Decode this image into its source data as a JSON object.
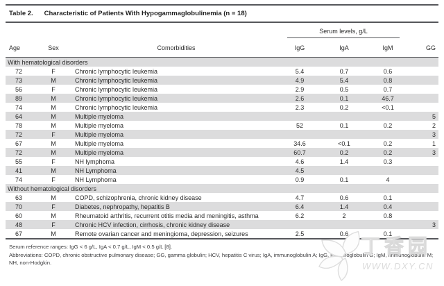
{
  "table": {
    "title_label": "Table 2.",
    "title": "Characteristic of Patients With Hypogammaglobulinemia (n = 18)",
    "serum_group_header": "Serum levels, g/L",
    "columns": [
      "Age",
      "Sex",
      "Comorbidities",
      "IgG",
      "IgA",
      "IgM",
      "GG"
    ],
    "sections": [
      {
        "header": "With hematological disorders",
        "rows": [
          [
            "72",
            "F",
            "Chronic lymphocytic leukemia",
            "5.4",
            "0.7",
            "0.6",
            ""
          ],
          [
            "73",
            "M",
            "Chronic lymphocytic leukemia",
            "4.9",
            "5.4",
            "0.8",
            ""
          ],
          [
            "56",
            "F",
            "Chronic lymphocytic leukemia",
            "2.9",
            "0.5",
            "0.7",
            ""
          ],
          [
            "89",
            "M",
            "Chronic lymphocytic leukemia",
            "2.6",
            "0.1",
            "46.7",
            ""
          ],
          [
            "74",
            "M",
            "Chronic lymphocytic leukemia",
            "2.3",
            "0.2",
            "<0.1",
            ""
          ],
          [
            "64",
            "M",
            "Multiple myeloma",
            "",
            "",
            "",
            "5"
          ],
          [
            "78",
            "M",
            "Multiple myeloma",
            "52",
            "0.1",
            "0.2",
            "2"
          ],
          [
            "72",
            "F",
            "Multiple myeloma",
            "",
            "",
            "",
            "3"
          ],
          [
            "67",
            "M",
            "Multiple myeloma",
            "34.6",
            "<0.1",
            "0.2",
            "1"
          ],
          [
            "72",
            "M",
            "Multiple myeloma",
            "60.7",
            "0.2",
            "0.2",
            "3"
          ],
          [
            "55",
            "F",
            "NH lymphoma",
            "4.6",
            "1.4",
            "0.3",
            ""
          ],
          [
            "41",
            "M",
            "NH Lymphoma",
            "4.5",
            "",
            "",
            ""
          ],
          [
            "74",
            "F",
            "NH Lymphoma",
            "0.9",
            "0.1",
            "4",
            ""
          ]
        ]
      },
      {
        "header": "Without hematological disorders",
        "rows": [
          [
            "63",
            "M",
            "COPD, schizophrenia, chronic kidney disease",
            "4.7",
            "0.6",
            "0.1",
            ""
          ],
          [
            "70",
            "F",
            "Diabetes, nephropathy, hepatitis B",
            "6.4",
            "1.4",
            "0.4",
            ""
          ],
          [
            "60",
            "M",
            "Rheumatoid arthritis, recurrent otitis media and meningitis, asthma",
            "6.2",
            "2",
            "0.8",
            ""
          ],
          [
            "48",
            "F",
            "Chronic HCV infection, cirrhosis, chronic kidney disease",
            "",
            "",
            "",
            "3"
          ],
          [
            "67",
            "M",
            "Remote ovarian cancer and meningioma, depression, seizures",
            "2.5",
            "0.6",
            "0.1",
            ""
          ]
        ]
      }
    ],
    "footnotes": [
      "Serum reference ranges: IgG < 6 g/L, IgA < 0.7 g/L, IgM < 0.5 g/L [8].",
      "Abbreviations: COPD, chronic obstructive pulmonary disease; GG, gamma globulin; HCV, hepatitis C virus; IgA, immunoglobulin A; IgG, immunoglobulin G; IgM, immunoglobulin M; NH, non-Hodgkin."
    ]
  },
  "watermark": {
    "name": "丁香园",
    "url": "WWW.DXY.CN"
  },
  "colors": {
    "stripe": "#dcdcdd",
    "rule": "#56575b",
    "text": "#2b2b2b",
    "watermark": "#dcdcdc"
  }
}
